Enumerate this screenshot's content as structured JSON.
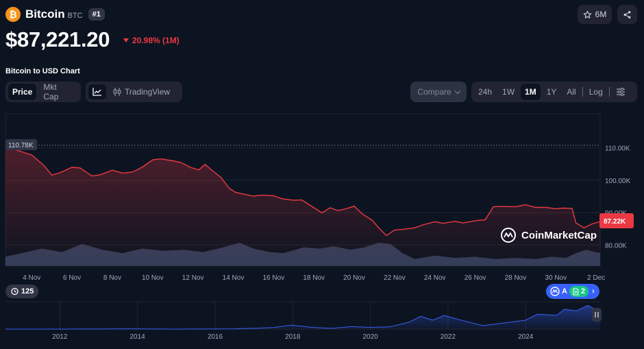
{
  "coin": {
    "name": "Bitcoin",
    "symbol": "BTC",
    "rank": "#1",
    "logo_glyph": "₿",
    "logo_color": "#f7931a"
  },
  "watchlist": {
    "count": "6M",
    "icon": "star-icon"
  },
  "share": {
    "icon": "share-icon"
  },
  "price": "$87,221.20",
  "change": {
    "value": "20.98% (1M)",
    "direction": "down",
    "color": "#ea3943"
  },
  "chart_title": "Bitcoin to USD Chart",
  "metric_tabs": [
    {
      "label": "Price",
      "active": true
    },
    {
      "label": "Mkt Cap",
      "active": false
    }
  ],
  "chart_mode": {
    "line_icon": "line-chart-icon",
    "tradingview_label": "TradingView",
    "tradingview_icon": "candlestick-icon"
  },
  "compare": {
    "label": "Compare"
  },
  "range_tabs": [
    {
      "label": "24h",
      "active": false
    },
    {
      "label": "1W",
      "active": false
    },
    {
      "label": "1M",
      "active": true
    },
    {
      "label": "1Y",
      "active": false
    },
    {
      "label": "All",
      "active": false
    }
  ],
  "log_label": "Log",
  "settings_icon": "sliders-icon",
  "watermark": "CoinMarketCap",
  "high_label": "110.78K",
  "current_label": "87.22K",
  "timeline": {
    "count": "125",
    "icon": "history-icon"
  },
  "promo": {
    "text": "A",
    "doc_count": "2"
  },
  "colors": {
    "down": "#ea3943",
    "line": "#ea3943",
    "volume": "#3b4461",
    "overview": "#3861fb",
    "background": "#0d1421"
  },
  "chart_data": {
    "type": "line",
    "title": "",
    "xlabel": "",
    "ylabel": "",
    "x_ticks": [
      "4 Nov",
      "6 Nov",
      "8 Nov",
      "10 Nov",
      "12 Nov",
      "14 Nov",
      "16 Nov",
      "18 Nov",
      "20 Nov",
      "22 Nov",
      "24 Nov",
      "26 Nov",
      "28 Nov",
      "30 Nov",
      "2 Dec"
    ],
    "y_ticks": [
      "110.00K",
      "100.00K",
      "90.00K",
      "80.00K"
    ],
    "y_tick_values": [
      110000,
      100000,
      90000,
      80000
    ],
    "ylim": [
      73500,
      120500
    ],
    "x_domain": [
      2.7,
      32.2
    ],
    "x_tick_days": [
      4,
      6,
      8,
      10,
      12,
      14,
      16,
      18,
      20,
      22,
      24,
      26,
      28,
      30,
      32
    ],
    "series": [
      {
        "days": [
          2.7,
          3.3,
          4.0,
          4.6,
          5.0,
          5.4,
          6.0,
          6.4,
          7.0,
          7.4,
          8.0,
          8.5,
          9.0,
          9.5,
          10.0,
          10.4,
          11.0,
          11.4,
          11.9,
          12.3,
          12.6,
          13.0,
          13.4,
          13.8,
          14.1,
          14.5,
          15.0,
          15.4,
          16.0,
          16.4,
          17.0,
          17.4,
          18.0,
          18.4,
          18.8,
          19.2,
          19.6,
          20.0,
          20.4,
          20.9,
          21.2,
          21.6,
          22.0,
          22.4,
          23.0,
          23.4,
          24.0,
          24.4,
          25.0,
          25.4,
          26.0,
          26.5,
          26.9,
          27.3,
          28.0,
          28.5,
          29.0,
          29.5,
          30.0,
          30.4,
          30.8,
          31.0,
          31.4,
          31.8,
          32.2
        ],
        "values": [
          110780,
          109200,
          107800,
          104600,
          101600,
          102300,
          104000,
          103800,
          101300,
          101700,
          103100,
          102200,
          102500,
          104100,
          106300,
          106600,
          106000,
          105500,
          103900,
          103200,
          104900,
          102800,
          100800,
          97500,
          96300,
          95700,
          95100,
          95400,
          95200,
          94300,
          93800,
          93900,
          91500,
          89900,
          91500,
          90600,
          91200,
          92000,
          89600,
          87600,
          85400,
          82900,
          84600,
          84800,
          85300,
          86200,
          87200,
          86700,
          87300,
          86800,
          87500,
          87800,
          91800,
          91900,
          91800,
          92400,
          91600,
          91600,
          91200,
          91400,
          91300,
          86800,
          85300,
          86500,
          87221
        ]
      }
    ],
    "volume_days": [
      2.7,
      3.5,
      4.5,
      5.5,
      6.5,
      7.5,
      8.5,
      9.5,
      10.5,
      11.5,
      12.5,
      13.5,
      14.3,
      15.0,
      15.8,
      16.5,
      17.5,
      18.3,
      19.0,
      19.8,
      20.5,
      21.2,
      21.8,
      22.4,
      23.0,
      24.0,
      25.0,
      26.0,
      27.0,
      28.0,
      29.0,
      29.8,
      30.5,
      31.0,
      31.5,
      32.2
    ],
    "volume_levels": [
      0.4,
      0.55,
      0.75,
      0.6,
      0.95,
      0.7,
      0.55,
      0.75,
      0.65,
      0.7,
      0.6,
      0.8,
      1.0,
      0.75,
      0.6,
      0.55,
      0.8,
      0.75,
      0.85,
      0.7,
      0.8,
      1.0,
      0.95,
      0.55,
      0.3,
      0.45,
      0.35,
      0.4,
      0.3,
      0.35,
      0.3,
      0.4,
      0.35,
      0.55,
      0.7,
      0.55
    ],
    "overview": {
      "x_ticks": [
        "2012",
        "2014",
        "2016",
        "2018",
        "2020",
        "2022",
        "2024"
      ],
      "x_tick_years": [
        2012,
        2014,
        2016,
        2018,
        2020,
        2022,
        2024
      ],
      "x_domain": [
        2010.6,
        2025.92
      ],
      "years": [
        2010.6,
        2012.0,
        2013.8,
        2015.0,
        2016.5,
        2017.5,
        2017.96,
        2018.5,
        2019.0,
        2019.5,
        2020.0,
        2020.5,
        2021.0,
        2021.3,
        2021.6,
        2021.9,
        2022.3,
        2022.9,
        2023.5,
        2024.0,
        2024.3,
        2024.8,
        2025.0,
        2025.3,
        2025.6,
        2025.92
      ],
      "levels": [
        0.0,
        0.0,
        0.01,
        0.0,
        0.01,
        0.06,
        0.16,
        0.07,
        0.03,
        0.1,
        0.07,
        0.09,
        0.28,
        0.52,
        0.36,
        0.55,
        0.38,
        0.14,
        0.26,
        0.36,
        0.6,
        0.56,
        0.8,
        0.74,
        0.96,
        0.71
      ]
    }
  }
}
